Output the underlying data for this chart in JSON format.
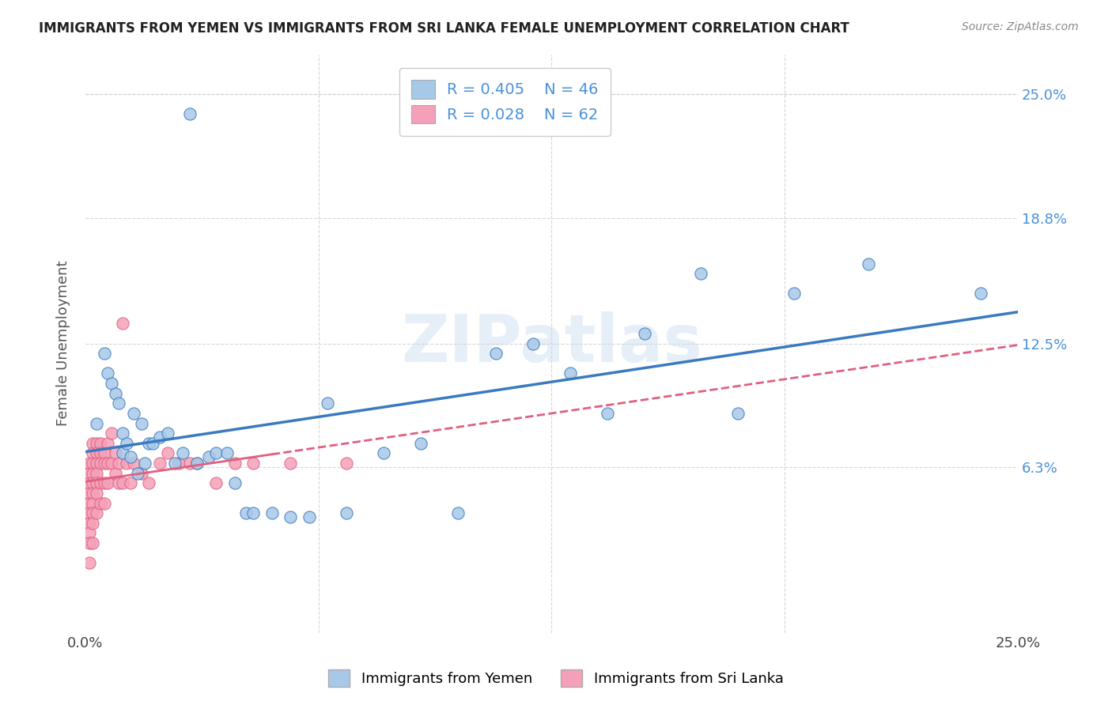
{
  "title": "IMMIGRANTS FROM YEMEN VS IMMIGRANTS FROM SRI LANKA FEMALE UNEMPLOYMENT CORRELATION CHART",
  "source": "Source: ZipAtlas.com",
  "ylabel": "Female Unemployment",
  "xlim": [
    0.0,
    0.25
  ],
  "ylim": [
    -0.02,
    0.27
  ],
  "color_yemen": "#a8c8e8",
  "color_srilanka": "#f4a0b8",
  "color_yemen_line": "#3a7abf",
  "color_srilanka_line": "#e06080",
  "background_color": "#ffffff",
  "grid_color": "#cccccc",
  "watermark": "ZIPatlas",
  "yemen_x": [
    0.003,
    0.005,
    0.006,
    0.007,
    0.008,
    0.009,
    0.01,
    0.01,
    0.011,
    0.012,
    0.013,
    0.014,
    0.015,
    0.016,
    0.017,
    0.018,
    0.02,
    0.022,
    0.024,
    0.026,
    0.028,
    0.03,
    0.033,
    0.035,
    0.038,
    0.04,
    0.043,
    0.045,
    0.05,
    0.055,
    0.06,
    0.065,
    0.07,
    0.08,
    0.09,
    0.1,
    0.11,
    0.12,
    0.13,
    0.14,
    0.15,
    0.165,
    0.175,
    0.19,
    0.21,
    0.24
  ],
  "yemen_y": [
    0.085,
    0.12,
    0.11,
    0.105,
    0.1,
    0.095,
    0.08,
    0.07,
    0.075,
    0.068,
    0.09,
    0.06,
    0.085,
    0.065,
    0.075,
    0.075,
    0.078,
    0.08,
    0.065,
    0.07,
    0.24,
    0.065,
    0.068,
    0.07,
    0.07,
    0.055,
    0.04,
    0.04,
    0.04,
    0.038,
    0.038,
    0.095,
    0.04,
    0.07,
    0.075,
    0.04,
    0.12,
    0.125,
    0.11,
    0.09,
    0.13,
    0.16,
    0.09,
    0.15,
    0.165,
    0.15
  ],
  "srilanka_x": [
    0.001,
    0.001,
    0.001,
    0.001,
    0.001,
    0.001,
    0.001,
    0.001,
    0.001,
    0.001,
    0.002,
    0.002,
    0.002,
    0.002,
    0.002,
    0.002,
    0.002,
    0.002,
    0.002,
    0.002,
    0.003,
    0.003,
    0.003,
    0.003,
    0.003,
    0.003,
    0.003,
    0.004,
    0.004,
    0.004,
    0.004,
    0.004,
    0.005,
    0.005,
    0.005,
    0.005,
    0.006,
    0.006,
    0.006,
    0.007,
    0.007,
    0.008,
    0.008,
    0.009,
    0.009,
    0.01,
    0.01,
    0.011,
    0.012,
    0.013,
    0.015,
    0.017,
    0.02,
    0.022,
    0.025,
    0.028,
    0.03,
    0.035,
    0.04,
    0.045,
    0.055,
    0.07
  ],
  "srilanka_y": [
    0.065,
    0.06,
    0.055,
    0.05,
    0.045,
    0.04,
    0.035,
    0.03,
    0.025,
    0.015,
    0.075,
    0.07,
    0.065,
    0.06,
    0.055,
    0.05,
    0.045,
    0.04,
    0.035,
    0.025,
    0.075,
    0.07,
    0.065,
    0.06,
    0.055,
    0.05,
    0.04,
    0.075,
    0.07,
    0.065,
    0.055,
    0.045,
    0.07,
    0.065,
    0.055,
    0.045,
    0.075,
    0.065,
    0.055,
    0.08,
    0.065,
    0.07,
    0.06,
    0.065,
    0.055,
    0.135,
    0.055,
    0.065,
    0.055,
    0.065,
    0.06,
    0.055,
    0.065,
    0.07,
    0.065,
    0.065,
    0.065,
    0.055,
    0.065,
    0.065,
    0.065,
    0.065
  ]
}
